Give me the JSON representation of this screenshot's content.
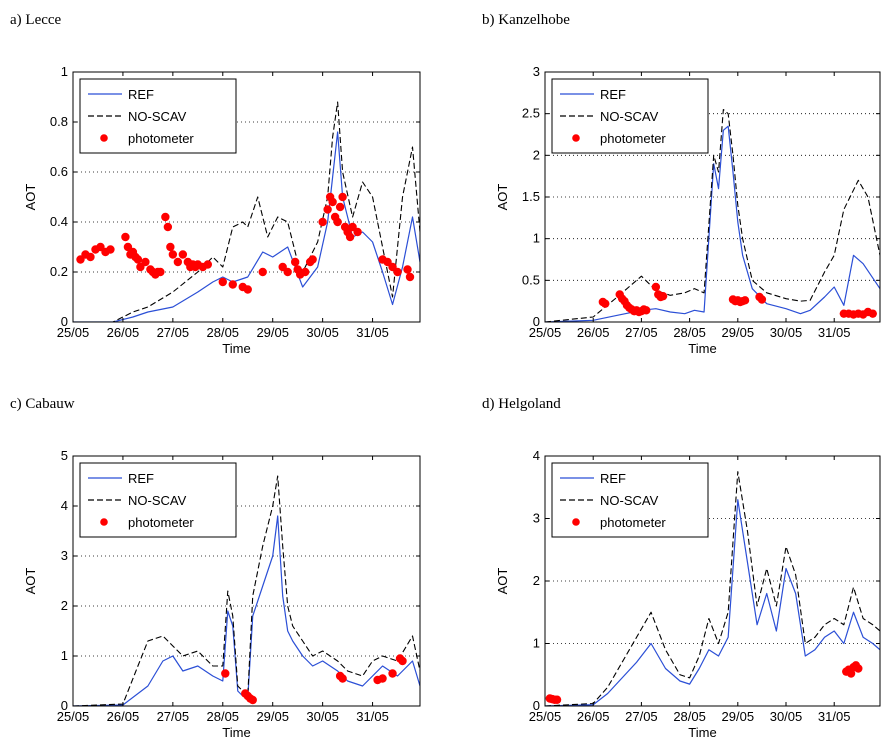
{
  "figure": {
    "colors": {
      "ref": "#2b4fd6",
      "noscav": "#000000",
      "photometer": "#ff0000",
      "grid": "#000000"
    }
  },
  "chart_data": [
    {
      "panel_label": "a) Lecce",
      "type": "line",
      "xlabel": "Time",
      "ylabel": "AOT",
      "xlim": [
        0,
        6.95
      ],
      "ylim": [
        0,
        1
      ],
      "yticks": [
        0,
        0.2,
        0.4,
        0.6,
        0.8,
        1
      ],
      "ytick_labels": [
        "0",
        "0.2",
        "0.4",
        "0.6",
        "0.8",
        "1"
      ],
      "xticks": [
        0,
        1,
        2,
        3,
        4,
        5,
        6
      ],
      "xtick_labels": [
        "25/05",
        "26/05",
        "27/05",
        "28/05",
        "29/05",
        "30/05",
        "31/05"
      ],
      "grid": "dotted horizontal",
      "legend": {
        "placement": "top-left",
        "entries": [
          "REF",
          "NO-SCAV",
          "photometer"
        ]
      },
      "series": [
        {
          "name": "REF",
          "style": "solid",
          "color": "#2b4fd6",
          "x": [
            0,
            0.8,
            1.2,
            1.5,
            2.0,
            2.5,
            2.8,
            3.0,
            3.2,
            3.5,
            3.8,
            4.0,
            4.3,
            4.6,
            4.9,
            5.1,
            5.2,
            5.3,
            5.4,
            5.6,
            5.8,
            6.0,
            6.2,
            6.4,
            6.6,
            6.8,
            6.95
          ],
          "y": [
            0,
            0.0,
            0.02,
            0.04,
            0.06,
            0.12,
            0.16,
            0.18,
            0.16,
            0.18,
            0.28,
            0.26,
            0.3,
            0.14,
            0.22,
            0.4,
            0.58,
            0.76,
            0.5,
            0.34,
            0.36,
            0.32,
            0.2,
            0.07,
            0.22,
            0.42,
            0.24
          ]
        },
        {
          "name": "NO-SCAV",
          "style": "dashed",
          "color": "#000000",
          "x": [
            0,
            0.8,
            1.2,
            1.5,
            2.0,
            2.5,
            2.8,
            3.0,
            3.2,
            3.4,
            3.5,
            3.7,
            3.9,
            4.1,
            4.3,
            4.5,
            4.6,
            4.9,
            5.1,
            5.2,
            5.3,
            5.4,
            5.6,
            5.8,
            6.0,
            6.2,
            6.4,
            6.6,
            6.8,
            6.95
          ],
          "y": [
            0,
            0.0,
            0.04,
            0.06,
            0.12,
            0.2,
            0.26,
            0.22,
            0.38,
            0.4,
            0.38,
            0.5,
            0.34,
            0.42,
            0.4,
            0.24,
            0.2,
            0.32,
            0.5,
            0.74,
            0.88,
            0.6,
            0.42,
            0.56,
            0.5,
            0.3,
            0.1,
            0.5,
            0.7,
            0.36
          ]
        },
        {
          "name": "photometer",
          "style": "markers",
          "color": "#ff0000",
          "x": [
            0.15,
            0.25,
            0.35,
            0.45,
            0.55,
            0.65,
            0.75,
            1.05,
            1.1,
            1.15,
            1.2,
            1.25,
            1.3,
            1.35,
            1.45,
            1.55,
            1.6,
            1.65,
            1.7,
            1.75,
            1.85,
            1.9,
            1.95,
            2.0,
            2.1,
            2.2,
            2.3,
            2.35,
            2.4,
            2.45,
            2.5,
            2.6,
            2.7,
            3.0,
            3.2,
            3.4,
            3.5,
            3.8,
            4.2,
            4.3,
            4.45,
            4.5,
            4.55,
            4.65,
            4.75,
            4.8,
            5.0,
            5.1,
            5.15,
            5.2,
            5.25,
            5.3,
            5.35,
            5.4,
            5.45,
            5.5,
            5.55,
            5.6,
            5.7,
            6.2,
            6.3,
            6.4,
            6.5,
            6.7,
            6.75
          ],
          "y": [
            0.25,
            0.27,
            0.26,
            0.29,
            0.3,
            0.28,
            0.29,
            0.34,
            0.3,
            0.27,
            0.28,
            0.26,
            0.25,
            0.22,
            0.24,
            0.21,
            0.2,
            0.19,
            0.2,
            0.2,
            0.42,
            0.38,
            0.3,
            0.27,
            0.24,
            0.27,
            0.24,
            0.22,
            0.23,
            0.22,
            0.23,
            0.22,
            0.23,
            0.16,
            0.15,
            0.14,
            0.13,
            0.2,
            0.22,
            0.2,
            0.24,
            0.21,
            0.19,
            0.2,
            0.24,
            0.25,
            0.4,
            0.45,
            0.5,
            0.48,
            0.42,
            0.4,
            0.46,
            0.5,
            0.38,
            0.36,
            0.34,
            0.38,
            0.36,
            0.25,
            0.24,
            0.22,
            0.2,
            0.21,
            0.18
          ]
        }
      ]
    },
    {
      "panel_label": "b) Kanzelhobe",
      "type": "line",
      "xlabel": "Time",
      "ylabel": "AOT",
      "xlim": [
        0,
        6.95
      ],
      "ylim": [
        0,
        3
      ],
      "yticks": [
        0,
        0.5,
        1,
        1.5,
        2,
        2.5,
        3
      ],
      "ytick_labels": [
        "0",
        "0.5",
        "1",
        "1.5",
        "2",
        "2.5",
        "3"
      ],
      "xticks": [
        0,
        1,
        2,
        3,
        4,
        5,
        6
      ],
      "xtick_labels": [
        "25/05",
        "26/05",
        "27/05",
        "28/05",
        "29/05",
        "30/05",
        "31/05"
      ],
      "grid": "dotted horizontal",
      "legend": {
        "placement": "top-left",
        "entries": [
          "REF",
          "NO-SCAV",
          "photometer"
        ]
      },
      "series": [
        {
          "name": "REF",
          "style": "solid",
          "color": "#2b4fd6",
          "x": [
            0,
            1.0,
            1.5,
            2.0,
            2.3,
            2.6,
            2.9,
            3.1,
            3.3,
            3.5,
            3.6,
            3.7,
            3.8,
            3.9,
            4.0,
            4.1,
            4.3,
            4.6,
            5.0,
            5.3,
            5.5,
            5.8,
            6.0,
            6.2,
            6.4,
            6.6,
            6.95
          ],
          "y": [
            0,
            0.02,
            0.08,
            0.14,
            0.16,
            0.12,
            0.1,
            0.14,
            0.12,
            1.9,
            1.6,
            2.3,
            2.35,
            1.8,
            1.2,
            0.8,
            0.4,
            0.22,
            0.16,
            0.1,
            0.14,
            0.3,
            0.42,
            0.2,
            0.8,
            0.7,
            0.4
          ]
        },
        {
          "name": "NO-SCAV",
          "style": "dashed",
          "color": "#000000",
          "x": [
            0,
            1.0,
            1.5,
            2.0,
            2.3,
            2.6,
            2.9,
            3.1,
            3.3,
            3.5,
            3.6,
            3.7,
            3.8,
            3.9,
            4.0,
            4.1,
            4.3,
            4.6,
            5.0,
            5.3,
            5.5,
            5.8,
            6.0,
            6.2,
            6.5,
            6.7,
            6.95
          ],
          "y": [
            0,
            0.06,
            0.3,
            0.55,
            0.38,
            0.32,
            0.35,
            0.4,
            0.35,
            2.0,
            1.8,
            2.55,
            2.5,
            2.0,
            1.4,
            1.0,
            0.5,
            0.35,
            0.28,
            0.25,
            0.26,
            0.6,
            0.8,
            1.35,
            1.7,
            1.5,
            0.8
          ]
        },
        {
          "name": "photometer",
          "style": "markers",
          "color": "#ff0000",
          "x": [
            1.2,
            1.25,
            1.55,
            1.6,
            1.65,
            1.7,
            1.75,
            1.8,
            1.85,
            1.9,
            1.95,
            2.0,
            2.05,
            2.1,
            2.3,
            2.35,
            2.4,
            2.45,
            3.9,
            3.95,
            4.0,
            4.05,
            4.1,
            4.15,
            4.45,
            4.5,
            6.2,
            6.3,
            6.4,
            6.5,
            6.6,
            6.7,
            6.8
          ],
          "y": [
            0.24,
            0.22,
            0.33,
            0.28,
            0.25,
            0.2,
            0.17,
            0.15,
            0.13,
            0.14,
            0.12,
            0.13,
            0.15,
            0.14,
            0.42,
            0.33,
            0.3,
            0.31,
            0.27,
            0.25,
            0.26,
            0.24,
            0.25,
            0.26,
            0.3,
            0.27,
            0.1,
            0.1,
            0.09,
            0.1,
            0.09,
            0.12,
            0.1
          ]
        }
      ]
    },
    {
      "panel_label": "c) Cabauw",
      "type": "line",
      "xlabel": "Time",
      "ylabel": "AOT",
      "xlim": [
        0,
        6.95
      ],
      "ylim": [
        0,
        5
      ],
      "yticks": [
        0,
        1,
        2,
        3,
        4,
        5
      ],
      "ytick_labels": [
        "0",
        "1",
        "2",
        "3",
        "4",
        "5"
      ],
      "xticks": [
        0,
        1,
        2,
        3,
        4,
        5,
        6
      ],
      "xtick_labels": [
        "25/05",
        "26/05",
        "27/05",
        "28/05",
        "29/05",
        "30/05",
        "31/05"
      ],
      "grid": "dotted horizontal",
      "legend": {
        "placement": "top-left",
        "entries": [
          "REF",
          "NO-SCAV",
          "photometer"
        ]
      },
      "series": [
        {
          "name": "REF",
          "style": "solid",
          "color": "#2b4fd6",
          "x": [
            0,
            1.0,
            1.5,
            1.8,
            2.0,
            2.2,
            2.5,
            2.8,
            3.0,
            3.1,
            3.2,
            3.3,
            3.4,
            3.5,
            3.6,
            3.8,
            4.0,
            4.1,
            4.2,
            4.3,
            4.4,
            4.6,
            4.8,
            5.0,
            5.3,
            5.5,
            5.8,
            6.0,
            6.2,
            6.5,
            6.8,
            6.95
          ],
          "y": [
            0,
            0.02,
            0.4,
            0.9,
            1.0,
            0.7,
            0.8,
            0.6,
            0.5,
            1.9,
            1.6,
            0.3,
            0.2,
            0.15,
            1.8,
            2.4,
            3.0,
            3.8,
            2.2,
            1.5,
            1.3,
            1.0,
            0.8,
            0.9,
            0.7,
            0.5,
            0.4,
            0.6,
            0.8,
            0.6,
            0.9,
            0.4
          ]
        },
        {
          "name": "NO-SCAV",
          "style": "dashed",
          "color": "#000000",
          "x": [
            0,
            1.0,
            1.3,
            1.5,
            1.8,
            2.0,
            2.2,
            2.5,
            2.8,
            3.0,
            3.1,
            3.2,
            3.3,
            3.4,
            3.5,
            3.6,
            3.8,
            4.0,
            4.1,
            4.2,
            4.3,
            4.4,
            4.6,
            4.8,
            5.0,
            5.3,
            5.5,
            5.8,
            6.0,
            6.2,
            6.5,
            6.8,
            6.95
          ],
          "y": [
            0,
            0.04,
            0.8,
            1.3,
            1.4,
            1.2,
            1.0,
            1.1,
            0.8,
            0.8,
            2.3,
            1.8,
            0.4,
            0.3,
            0.2,
            2.2,
            3.2,
            4.0,
            4.6,
            3.2,
            2.0,
            1.6,
            1.3,
            1.0,
            1.1,
            0.9,
            0.7,
            0.6,
            0.9,
            1.0,
            0.9,
            1.4,
            0.7
          ]
        },
        {
          "name": "photometer",
          "style": "markers",
          "color": "#ff0000",
          "x": [
            3.05,
            3.45,
            3.5,
            3.55,
            3.6,
            5.35,
            5.4,
            6.1,
            6.2,
            6.4,
            6.55,
            6.6
          ],
          "y": [
            0.65,
            0.25,
            0.2,
            0.15,
            0.12,
            0.6,
            0.55,
            0.52,
            0.55,
            0.65,
            0.95,
            0.9
          ]
        }
      ]
    },
    {
      "panel_label": "d) Helgoland",
      "type": "line",
      "xlabel": "Time",
      "ylabel": "AOT",
      "xlim": [
        0,
        6.95
      ],
      "ylim": [
        0,
        4
      ],
      "yticks": [
        0,
        1,
        2,
        3,
        4
      ],
      "ytick_labels": [
        "0",
        "1",
        "2",
        "3",
        "4"
      ],
      "xticks": [
        0,
        1,
        2,
        3,
        4,
        5,
        6
      ],
      "xtick_labels": [
        "25/05",
        "26/05",
        "27/05",
        "28/05",
        "29/05",
        "30/05",
        "31/05"
      ],
      "grid": "dotted horizontal",
      "legend": {
        "placement": "top-left",
        "entries": [
          "REF",
          "NO-SCAV",
          "photometer"
        ]
      },
      "series": [
        {
          "name": "REF",
          "style": "solid",
          "color": "#2b4fd6",
          "x": [
            0,
            1.0,
            1.3,
            1.6,
            1.9,
            2.2,
            2.5,
            2.8,
            3.0,
            3.2,
            3.4,
            3.6,
            3.8,
            4.0,
            4.2,
            4.4,
            4.6,
            4.8,
            5.0,
            5.2,
            5.4,
            5.6,
            5.8,
            6.0,
            6.2,
            6.4,
            6.6,
            6.8,
            6.95
          ],
          "y": [
            0,
            0.02,
            0.2,
            0.45,
            0.7,
            1.0,
            0.6,
            0.4,
            0.35,
            0.6,
            0.9,
            0.8,
            1.1,
            3.3,
            2.3,
            1.3,
            1.8,
            1.2,
            2.2,
            1.8,
            0.8,
            0.9,
            1.1,
            1.2,
            1.0,
            1.5,
            1.1,
            1.0,
            0.9
          ]
        },
        {
          "name": "NO-SCAV",
          "style": "dashed",
          "color": "#000000",
          "x": [
            0,
            1.0,
            1.3,
            1.6,
            1.9,
            2.2,
            2.5,
            2.8,
            3.0,
            3.2,
            3.4,
            3.6,
            3.8,
            4.0,
            4.2,
            4.4,
            4.6,
            4.8,
            5.0,
            5.2,
            5.4,
            5.6,
            5.8,
            6.0,
            6.2,
            6.4,
            6.6,
            6.8,
            6.95
          ],
          "y": [
            0,
            0.04,
            0.3,
            0.7,
            1.1,
            1.5,
            0.9,
            0.5,
            0.45,
            0.8,
            1.4,
            1.0,
            1.5,
            3.75,
            2.8,
            1.6,
            2.2,
            1.6,
            2.55,
            2.1,
            1.0,
            1.1,
            1.3,
            1.4,
            1.3,
            1.9,
            1.4,
            1.3,
            1.2
          ]
        },
        {
          "name": "photometer",
          "style": "markers",
          "color": "#ff0000",
          "x": [
            0.1,
            0.15,
            0.2,
            0.25,
            6.25,
            6.3,
            6.35,
            6.4,
            6.45,
            6.5
          ],
          "y": [
            0.12,
            0.11,
            0.1,
            0.1,
            0.55,
            0.58,
            0.52,
            0.62,
            0.65,
            0.6
          ]
        }
      ]
    }
  ]
}
